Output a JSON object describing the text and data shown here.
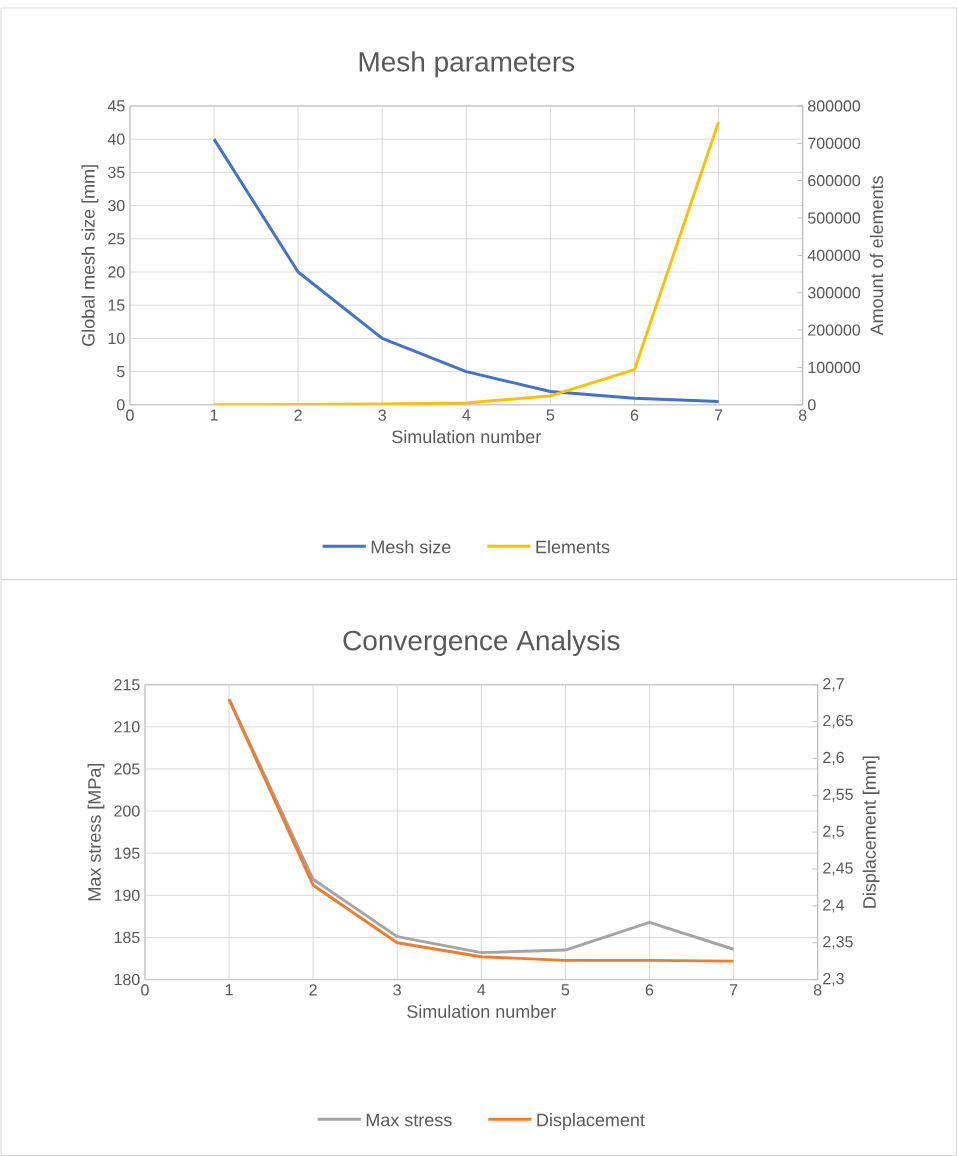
{
  "chart_data": [
    {
      "type": "line",
      "title": "Mesh parameters",
      "xlabel": "Simulation number",
      "ylabel": "Global mesh size [mm]",
      "y2label": "Amount of elements",
      "x": [
        1,
        2,
        3,
        4,
        5,
        6,
        7
      ],
      "series": [
        {
          "name": "Mesh size",
          "color": "#4472c4",
          "values": [
            40,
            20,
            10,
            5,
            2,
            1,
            0.5
          ]
        },
        {
          "name": "Elements",
          "color": "#ffc000",
          "axis": "y2",
          "values": [
            0,
            1000,
            2000,
            5000,
            24000,
            94000,
            757000
          ]
        }
      ],
      "xlim": [
        0,
        8
      ],
      "xticks": [
        0,
        1,
        2,
        3,
        4,
        5,
        6,
        7,
        8
      ],
      "ylim": [
        0,
        45
      ],
      "yticks": [
        0,
        5,
        10,
        15,
        20,
        25,
        30,
        35,
        40,
        45
      ],
      "y2lim": [
        0,
        800000
      ],
      "y2ticks": [
        0,
        100000,
        200000,
        300000,
        400000,
        500000,
        600000,
        700000,
        800000
      ],
      "grid": true,
      "legend": "bottom"
    },
    {
      "type": "line",
      "title": "Convergence Analysis",
      "xlabel": "Simulation number",
      "ylabel": "Max stress [MPa]",
      "y2label": "Displacement [mm]",
      "x": [
        1,
        2,
        3,
        4,
        5,
        6,
        7
      ],
      "series": [
        {
          "name": "Max stress",
          "color": "#a5a5a5",
          "values": [
            213.3,
            191.9,
            185.1,
            183.2,
            183.5,
            186.8,
            183.6
          ]
        },
        {
          "name": "Displacement",
          "color": "#ed7d31",
          "axis": "y2",
          "values": [
            2.68,
            2.428,
            2.35,
            2.331,
            2.326,
            2.326,
            2.325
          ]
        }
      ],
      "xlim": [
        0,
        8
      ],
      "xticks": [
        0,
        1,
        2,
        3,
        4,
        5,
        6,
        7,
        8
      ],
      "ylim": [
        180,
        215
      ],
      "yticks": [
        180,
        185,
        190,
        195,
        200,
        205,
        210,
        215
      ],
      "y2lim": [
        2.3,
        2.7
      ],
      "y2ticks": [
        {
          "value": 2.3,
          "label": "2,3"
        },
        {
          "value": 2.35,
          "label": "2,35"
        },
        {
          "value": 2.4,
          "label": "2,4"
        },
        {
          "value": 2.45,
          "label": "2,45"
        },
        {
          "value": 2.5,
          "label": "2,5"
        },
        {
          "value": 2.55,
          "label": "2,55"
        },
        {
          "value": 2.6,
          "label": "2,6"
        },
        {
          "value": 2.65,
          "label": "2,65"
        },
        {
          "value": 2.7,
          "label": "2,7"
        }
      ],
      "grid": true,
      "legend": "bottom"
    }
  ]
}
